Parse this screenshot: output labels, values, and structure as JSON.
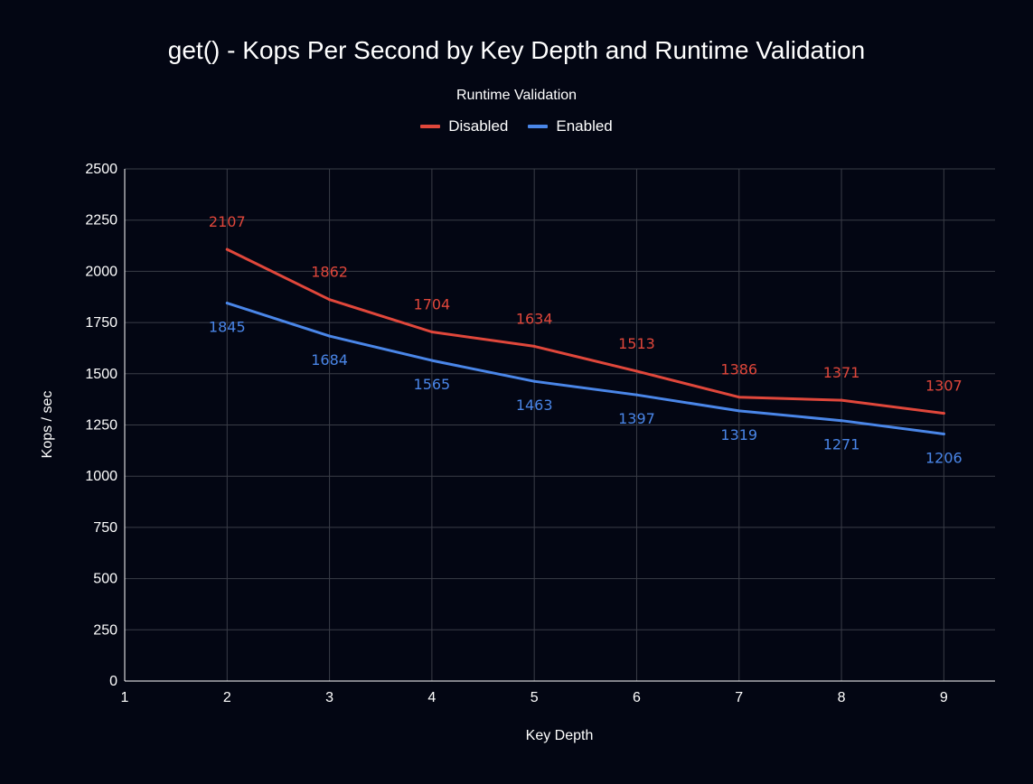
{
  "chart_data": {
    "type": "line",
    "title": "get() - Kops Per Second by Key Depth and Runtime Validation",
    "legend_title": "Runtime Validation",
    "legend_position": "top-center",
    "xlabel": "Key Depth",
    "ylabel": "Kops / sec",
    "x_ticks": [
      "1",
      "2",
      "3",
      "4",
      "5",
      "6",
      "7",
      "8",
      "9"
    ],
    "y_ticks": [
      "0",
      "250",
      "500",
      "750",
      "1000",
      "1250",
      "1500",
      "1750",
      "2000",
      "2250",
      "2500"
    ],
    "xlim": [
      1,
      9.5
    ],
    "ylim": [
      0,
      2500
    ],
    "grid": true,
    "x": [
      2,
      3,
      4,
      5,
      6,
      7,
      8,
      9
    ],
    "series": [
      {
        "name": "Disabled",
        "color": "#e0473b",
        "values": [
          2107,
          1862,
          1704,
          1634,
          1513,
          1386,
          1371,
          1307
        ],
        "labels": [
          "2107",
          "1862",
          "1704",
          "1634",
          "1513",
          "1386",
          "1371",
          "1307"
        ],
        "label_position": "above"
      },
      {
        "name": "Enabled",
        "color": "#4a86e8",
        "values": [
          1845,
          1684,
          1565,
          1463,
          1397,
          1319,
          1271,
          1206
        ],
        "labels": [
          "1845",
          "1684",
          "1565",
          "1463",
          "1397",
          "1319",
          "1271",
          "1206"
        ],
        "label_position": "below"
      }
    ]
  },
  "colors": {
    "background": "#030613",
    "gridline": "#3a3d47",
    "axis": "#ffffff",
    "text": "#ffffff"
  }
}
